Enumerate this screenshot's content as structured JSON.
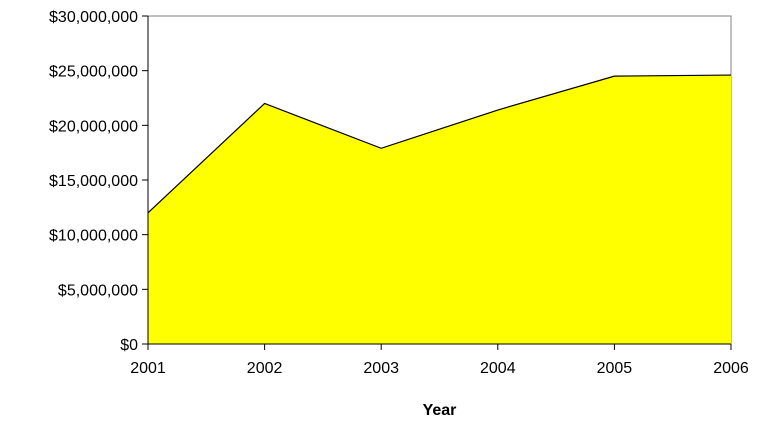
{
  "chart_data": {
    "type": "area",
    "title": "",
    "xlabel": "Year",
    "ylabel": "",
    "x": [
      "2001",
      "2002",
      "2003",
      "2004",
      "2005",
      "2006"
    ],
    "series": [
      {
        "values": [
          12000000,
          22000000,
          17900000,
          21400000,
          24500000,
          24600000
        ],
        "fill_color": "#ffff00",
        "line_color": "#000000"
      }
    ],
    "ylim": [
      0,
      30000000
    ],
    "y_ticks": [
      0,
      5000000,
      10000000,
      15000000,
      20000000,
      25000000,
      30000000
    ],
    "y_tick_labels": [
      "$0",
      "$5,000,000",
      "$10,000,000",
      "$15,000,000",
      "$20,000,000",
      "$25,000,000",
      "$30,000,000"
    ],
    "grid": false,
    "legend": "none"
  }
}
